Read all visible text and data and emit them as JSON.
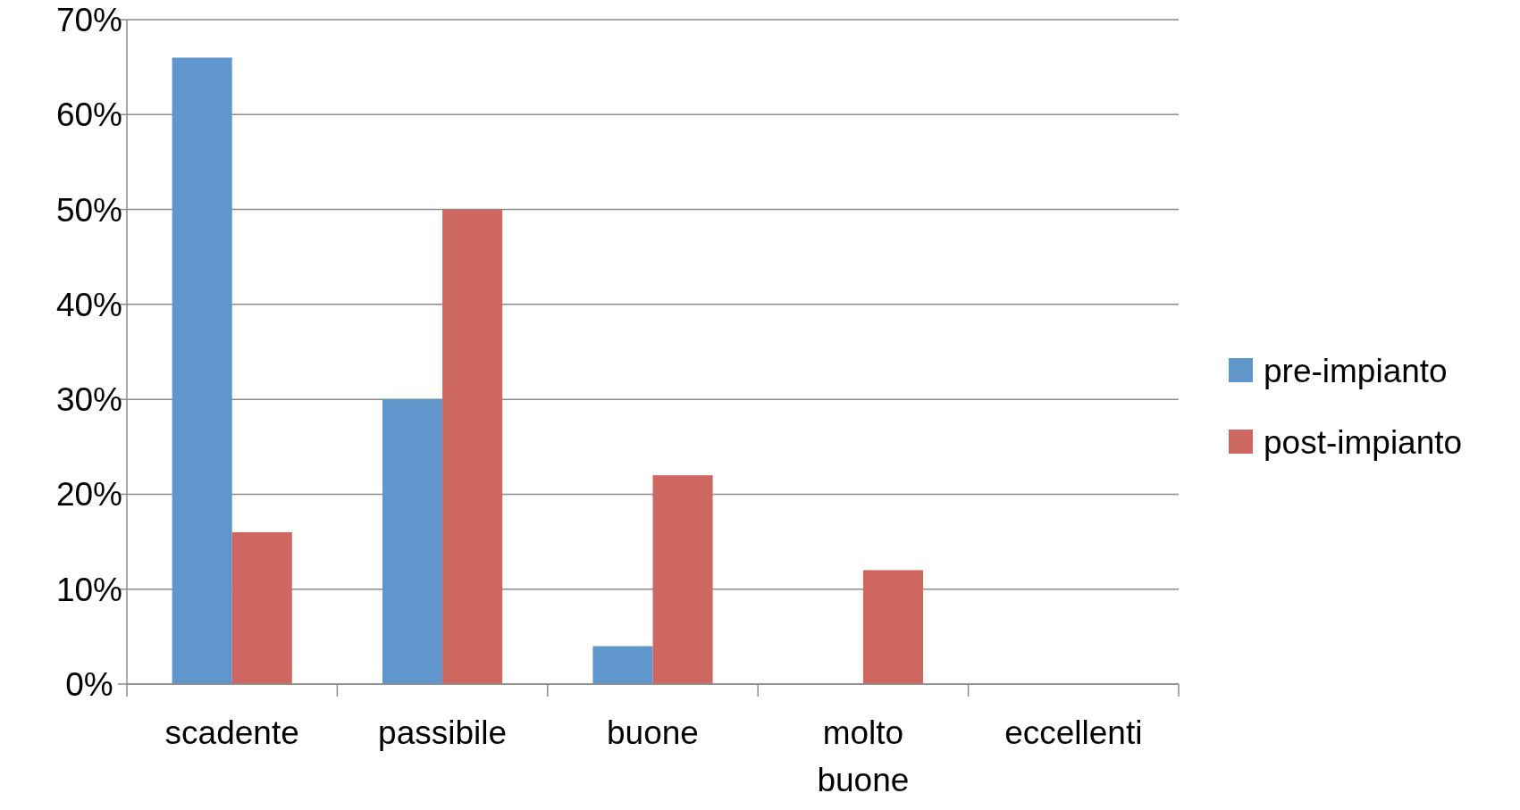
{
  "chart_data": {
    "type": "bar",
    "categories": [
      "scadente",
      "passibile",
      "buone",
      "molto buone",
      "eccellenti"
    ],
    "series": [
      {
        "name": "pre-impianto",
        "color": "#6096cb",
        "values": [
          66,
          30,
          4,
          0,
          0
        ]
      },
      {
        "name": "post-impianto",
        "color": "#cd6760",
        "values": [
          16,
          50,
          22,
          12,
          0
        ]
      }
    ],
    "ylim": [
      0,
      70
    ],
    "yticks": [
      {
        "value": 0,
        "label": "0%"
      },
      {
        "value": 10,
        "label": "10%"
      },
      {
        "value": 20,
        "label": "20%"
      },
      {
        "value": 30,
        "label": "30%"
      },
      {
        "value": 40,
        "label": "40%"
      },
      {
        "value": 50,
        "label": "50%"
      },
      {
        "value": 60,
        "label": "60%"
      },
      {
        "value": 70,
        "label": "70%"
      }
    ],
    "grid": "y",
    "legend": "right"
  }
}
